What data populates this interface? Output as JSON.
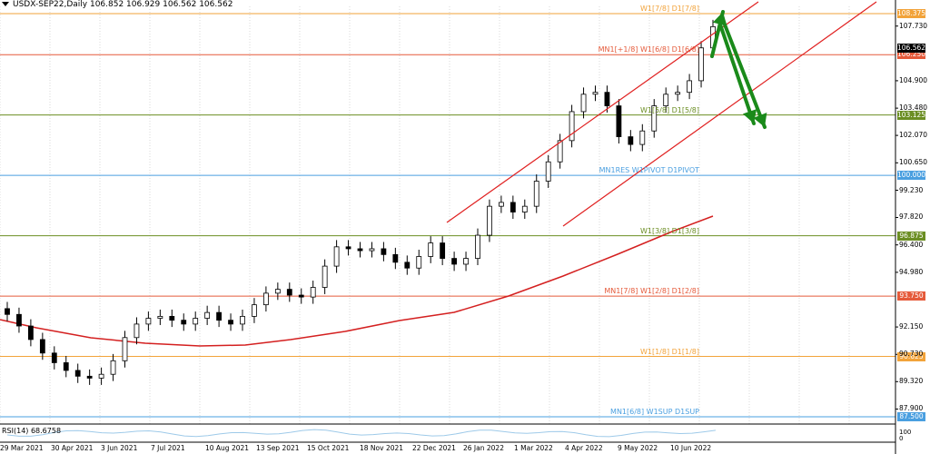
{
  "header": {
    "symbol_info": "USDX-SEP22,Daily  106.852 106.929 106.562 106.562"
  },
  "indicator": {
    "label": "RSI(14) 68.6758",
    "axis": [
      "100",
      "0"
    ]
  },
  "colors": {
    "orange": "#f2a33a",
    "red": "#e55a3a",
    "green": "#6b8e23",
    "blue": "#4a9fe0",
    "channel": "#e02020",
    "ma": "#d42020",
    "arrow": "#1a8a1a",
    "candle": "#000000"
  },
  "levels": [
    {
      "label": "W1[7/8] D1[7/8]",
      "price": 108.375,
      "badge": "108.375",
      "color": "#f2a33a"
    },
    {
      "label": "MN1[+1/8] W1[6/8] D1[6/8]",
      "price": 106.25,
      "badge": "106.250",
      "color": "#e55a3a"
    },
    {
      "label": "W1[5/8] D1[5/8]",
      "price": 103.125,
      "badge": "103.125",
      "color": "#6b8e23"
    },
    {
      "label": "MN1RES W1PIVOT D1PIVOT",
      "price": 100.0,
      "badge": "100.000",
      "color": "#4a9fe0"
    },
    {
      "label": "W1[3/8] D1[3/8]",
      "price": 96.875,
      "badge": "96.875",
      "color": "#6b8e23"
    },
    {
      "label": "MN1[7/8] W1[2/8] D1[2/8]",
      "price": 93.75,
      "badge": "93.750",
      "color": "#e55a3a"
    },
    {
      "label": "W1[1/8] D1[1/8]",
      "price": 90.625,
      "badge": "90.625",
      "color": "#f2a33a"
    },
    {
      "label": "MN1[6/8] W1SUP D1SUP",
      "price": 87.5,
      "badge": "87.500",
      "color": "#4a9fe0"
    }
  ],
  "current_price": "106.562",
  "price_ticks": [
    "107.730",
    "104.900",
    "103.480",
    "102.070",
    "100.650",
    "99.230",
    "97.820",
    "96.400",
    "94.980",
    "92.150",
    "90.730",
    "89.320",
    "87.900"
  ],
  "x_axis": [
    "29 Mar 2021",
    "30 Apr 2021",
    "3 Jun 2021",
    "7 Jul 2021",
    "10 Aug 2021",
    "13 Sep 2021",
    "15 Oct 2021",
    "18 Nov 2021",
    "22 Dec 2021",
    "26 Jan 2022",
    "1 Mar 2022",
    "4 Apr 2022",
    "9 May 2022",
    "10 Jun 2022"
  ],
  "chart_data": {
    "type": "line",
    "title": "",
    "xlabel": "",
    "ylabel": "",
    "ylim": [
      87.3,
      109.1
    ],
    "series": [
      {
        "values": [
          92.8,
          92.2,
          91.5,
          90.8,
          90.3,
          89.9,
          89.6,
          89.5,
          89.7,
          90.4,
          91.6,
          92.3,
          92.6,
          92.7,
          92.5,
          92.3,
          92.6,
          92.9,
          92.5,
          92.3,
          92.7,
          93.3,
          93.9,
          94.1,
          93.8,
          93.7,
          94.2,
          95.3,
          96.3,
          96.2,
          96.1,
          96.2,
          95.9,
          95.5,
          95.2,
          95.8,
          96.5,
          95.7,
          95.4,
          95.7,
          96.9,
          98.4,
          98.6,
          98.1,
          98.4,
          99.7,
          100.7,
          101.8,
          103.3,
          104.2,
          104.3,
          103.6,
          102.0,
          101.6,
          102.3,
          103.6,
          104.2,
          104.3,
          104.9,
          106.6,
          107.7
        ]
      }
    ]
  }
}
